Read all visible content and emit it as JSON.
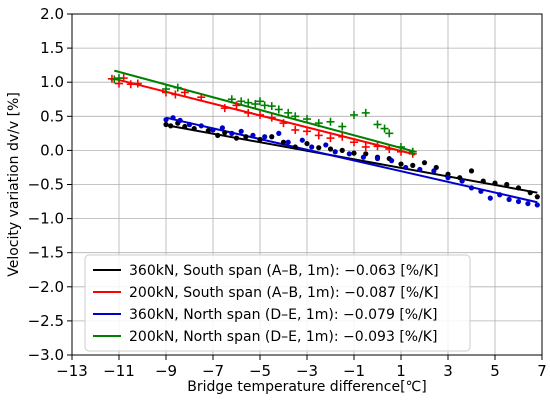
{
  "chart_data": {
    "type": "scatter",
    "title": "",
    "xlabel": "Bridge temperature difference[℃]",
    "ylabel": "Velocity variation dv/v [%]",
    "xlim": [
      -13,
      7
    ],
    "ylim": [
      -3.0,
      2.0
    ],
    "x_ticks": [
      -13,
      -11,
      -9,
      -7,
      -5,
      -3,
      -1,
      1,
      3,
      5,
      7
    ],
    "x_tick_labels": [
      "−13",
      "−11",
      "−9",
      "−7",
      "−5",
      "−3",
      "−1",
      "1",
      "3",
      "5",
      "7"
    ],
    "y_ticks": [
      -3.0,
      -2.5,
      -2.0,
      -1.5,
      -1.0,
      -0.5,
      0.0,
      0.5,
      1.0,
      1.5,
      2.0
    ],
    "y_tick_labels": [
      "−3.0",
      "−2.5",
      "−2.0",
      "−1.5",
      "−1.0",
      "−0.5",
      "0.0",
      "0.5",
      "1.0",
      "1.5",
      "2.0"
    ],
    "grid": true,
    "legend_position": "lower-left",
    "series": [
      {
        "name": "360kN, South span (A–B, 1m): −0.063 [%/K]",
        "color": "#000000",
        "marker": "dot",
        "fit_line": {
          "x": [
            -9.0,
            6.8
          ],
          "y": [
            0.37,
            -0.62
          ]
        },
        "points": [
          [
            -9.0,
            0.38
          ],
          [
            -8.8,
            0.36
          ],
          [
            -8.5,
            0.4
          ],
          [
            -8.2,
            0.35
          ],
          [
            -7.8,
            0.32
          ],
          [
            -7.2,
            0.29
          ],
          [
            -6.8,
            0.22
          ],
          [
            -6.5,
            0.26
          ],
          [
            -6.0,
            0.18
          ],
          [
            -5.6,
            0.2
          ],
          [
            -5.0,
            0.16
          ],
          [
            -4.5,
            0.2
          ],
          [
            -4.0,
            0.12
          ],
          [
            -3.5,
            0.05
          ],
          [
            -3.0,
            0.1
          ],
          [
            -2.5,
            0.04
          ],
          [
            -2.0,
            0.02
          ],
          [
            -1.5,
            0.0
          ],
          [
            -1.0,
            -0.04
          ],
          [
            -0.5,
            -0.05
          ],
          [
            0.0,
            -0.1
          ],
          [
            0.5,
            -0.12
          ],
          [
            1.0,
            -0.2
          ],
          [
            1.5,
            -0.22
          ],
          [
            2.0,
            -0.18
          ],
          [
            2.5,
            -0.25
          ],
          [
            3.0,
            -0.35
          ],
          [
            3.5,
            -0.4
          ],
          [
            4.0,
            -0.3
          ],
          [
            4.5,
            -0.45
          ],
          [
            5.0,
            -0.48
          ],
          [
            5.5,
            -0.5
          ],
          [
            6.0,
            -0.55
          ],
          [
            6.5,
            -0.62
          ],
          [
            6.8,
            -0.68
          ]
        ]
      },
      {
        "name": "200kN, South span (A–B, 1m): −0.087 [%/K]",
        "color": "#ff0000",
        "marker": "plus",
        "fit_line": {
          "x": [
            -11.2,
            1.6
          ],
          "y": [
            1.05,
            -0.06
          ]
        },
        "points": [
          [
            -11.3,
            1.05
          ],
          [
            -11.0,
            0.98
          ],
          [
            -10.8,
            1.06
          ],
          [
            -10.5,
            0.97
          ],
          [
            -10.2,
            0.98
          ],
          [
            -9.0,
            0.85
          ],
          [
            -8.6,
            0.82
          ],
          [
            -8.2,
            0.85
          ],
          [
            -7.5,
            0.78
          ],
          [
            -6.5,
            0.62
          ],
          [
            -6.0,
            0.66
          ],
          [
            -5.5,
            0.55
          ],
          [
            -5.0,
            0.52
          ],
          [
            -4.5,
            0.48
          ],
          [
            -4.0,
            0.4
          ],
          [
            -3.5,
            0.3
          ],
          [
            -3.0,
            0.28
          ],
          [
            -2.5,
            0.22
          ],
          [
            -2.0,
            0.18
          ],
          [
            -1.5,
            0.2
          ],
          [
            -1.0,
            0.12
          ],
          [
            -0.5,
            0.05
          ],
          [
            0.0,
            0.06
          ],
          [
            0.5,
            0.02
          ],
          [
            1.0,
            -0.02
          ],
          [
            1.5,
            -0.05
          ]
        ]
      },
      {
        "name": "360kN, North span (D–E, 1m): −0.079 [%/K]",
        "color": "#0000cc",
        "marker": "dot",
        "fit_line": {
          "x": [
            -9.0,
            6.8
          ],
          "y": [
            0.48,
            -0.76
          ]
        },
        "points": [
          [
            -9.0,
            0.45
          ],
          [
            -8.7,
            0.48
          ],
          [
            -8.4,
            0.44
          ],
          [
            -8.0,
            0.38
          ],
          [
            -7.5,
            0.36
          ],
          [
            -7.0,
            0.3
          ],
          [
            -6.6,
            0.33
          ],
          [
            -6.2,
            0.25
          ],
          [
            -5.8,
            0.28
          ],
          [
            -5.3,
            0.22
          ],
          [
            -4.8,
            0.2
          ],
          [
            -4.2,
            0.25
          ],
          [
            -3.8,
            0.12
          ],
          [
            -3.2,
            0.15
          ],
          [
            -2.8,
            0.05
          ],
          [
            -2.2,
            0.08
          ],
          [
            -1.8,
            -0.02
          ],
          [
            -1.2,
            -0.05
          ],
          [
            -0.6,
            -0.1
          ],
          [
            0.0,
            -0.12
          ],
          [
            0.6,
            -0.15
          ],
          [
            1.2,
            -0.25
          ],
          [
            1.8,
            -0.28
          ],
          [
            2.4,
            -0.3
          ],
          [
            3.0,
            -0.4
          ],
          [
            3.6,
            -0.45
          ],
          [
            4.0,
            -0.55
          ],
          [
            4.4,
            -0.6
          ],
          [
            4.8,
            -0.7
          ],
          [
            5.2,
            -0.65
          ],
          [
            5.6,
            -0.72
          ],
          [
            6.0,
            -0.75
          ],
          [
            6.4,
            -0.78
          ],
          [
            6.8,
            -0.8
          ]
        ]
      },
      {
        "name": "200kN, North span (D–E, 1m): −0.093 [%/K]",
        "color": "#008000",
        "marker": "plus",
        "fit_line": {
          "x": [
            -11.2,
            1.6
          ],
          "y": [
            1.17,
            -0.02
          ]
        },
        "points": [
          [
            -11.2,
            1.04
          ],
          [
            -11.0,
            1.06
          ],
          [
            -9.0,
            0.9
          ],
          [
            -8.5,
            0.92
          ],
          [
            -6.2,
            0.75
          ],
          [
            -5.8,
            0.72
          ],
          [
            -5.5,
            0.7
          ],
          [
            -5.2,
            0.68
          ],
          [
            -5.0,
            0.72
          ],
          [
            -4.8,
            0.66
          ],
          [
            -4.5,
            0.65
          ],
          [
            -4.2,
            0.6
          ],
          [
            -3.8,
            0.55
          ],
          [
            -3.5,
            0.5
          ],
          [
            -3.0,
            0.46
          ],
          [
            -2.5,
            0.4
          ],
          [
            -2.0,
            0.42
          ],
          [
            -1.5,
            0.35
          ],
          [
            -1.0,
            0.52
          ],
          [
            -0.5,
            0.55
          ],
          [
            0.0,
            0.38
          ],
          [
            0.3,
            0.32
          ],
          [
            0.5,
            0.25
          ],
          [
            1.0,
            0.05
          ],
          [
            1.5,
            -0.02
          ]
        ]
      }
    ]
  }
}
